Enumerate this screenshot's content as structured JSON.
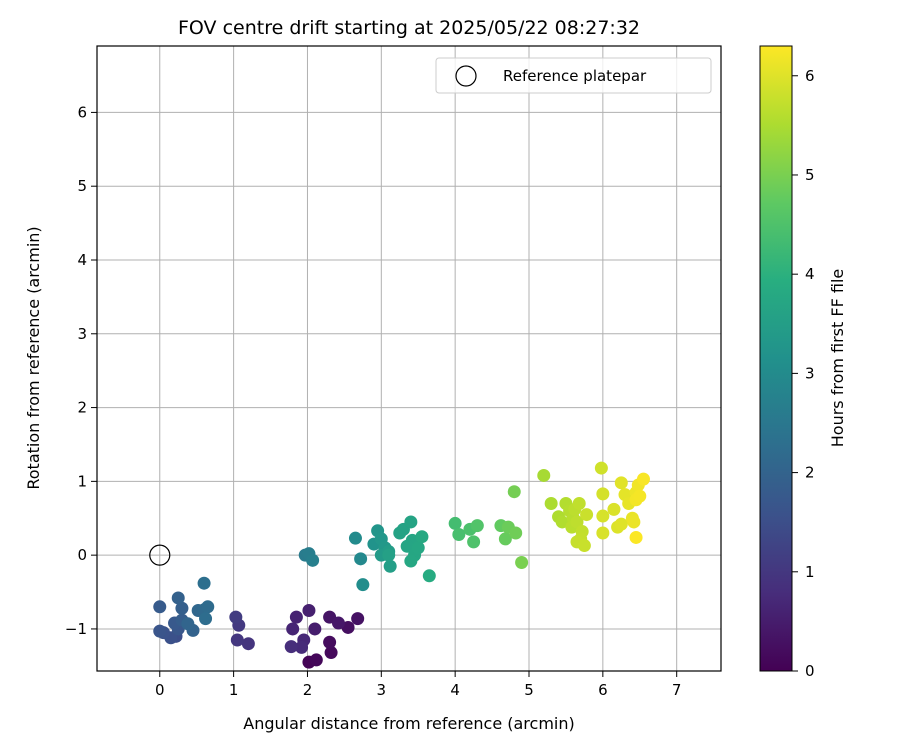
{
  "chart_data": {
    "type": "scatter",
    "title": "FOV centre drift starting at 2025/05/22 08:27:32",
    "xlabel": "Angular distance from reference (arcmin)",
    "ylabel": "Rotation from reference (arcmin)",
    "xlim": [
      -0.85,
      7.6
    ],
    "ylim": [
      -1.57,
      6.9
    ],
    "xticks": [
      0,
      1,
      2,
      3,
      4,
      5,
      6,
      7
    ],
    "yticks": [
      -1,
      0,
      1,
      2,
      3,
      4,
      5,
      6
    ],
    "grid": true,
    "legend": {
      "placement": "upper-right",
      "entries": [
        "Reference platepar"
      ]
    },
    "reference_point": {
      "x": 0,
      "y": 0,
      "marker": "hollow-circle",
      "label": "Reference platepar"
    },
    "colorbar": {
      "label": "Hours from first FF file",
      "colormap": "viridis",
      "range": [
        0,
        6.3
      ],
      "ticks": [
        0,
        1,
        2,
        3,
        4,
        5,
        6
      ]
    },
    "points": [
      {
        "x": 2.02,
        "y": -1.45,
        "h": 0.05
      },
      {
        "x": 2.12,
        "y": -1.42,
        "h": 0.1
      },
      {
        "x": 2.32,
        "y": -1.32,
        "h": 0.15
      },
      {
        "x": 2.3,
        "y": -1.18,
        "h": 0.2
      },
      {
        "x": 2.55,
        "y": -0.98,
        "h": 0.25
      },
      {
        "x": 2.68,
        "y": -0.86,
        "h": 0.3
      },
      {
        "x": 2.3,
        "y": -0.84,
        "h": 0.35
      },
      {
        "x": 2.42,
        "y": -0.92,
        "h": 0.4
      },
      {
        "x": 2.1,
        "y": -1.0,
        "h": 0.5
      },
      {
        "x": 2.02,
        "y": -0.75,
        "h": 0.55
      },
      {
        "x": 1.85,
        "y": -0.84,
        "h": 0.6
      },
      {
        "x": 1.8,
        "y": -1.0,
        "h": 0.65
      },
      {
        "x": 1.95,
        "y": -1.15,
        "h": 0.7
      },
      {
        "x": 1.92,
        "y": -1.25,
        "h": 0.75
      },
      {
        "x": 1.78,
        "y": -1.24,
        "h": 0.8
      },
      {
        "x": 1.2,
        "y": -1.2,
        "h": 0.95
      },
      {
        "x": 1.05,
        "y": -1.15,
        "h": 1.0
      },
      {
        "x": 1.07,
        "y": -0.95,
        "h": 1.05
      },
      {
        "x": 1.03,
        "y": -0.84,
        "h": 1.1
      },
      {
        "x": 0.22,
        "y": -1.1,
        "h": 1.5
      },
      {
        "x": 0.15,
        "y": -1.12,
        "h": 1.55
      },
      {
        "x": 0.05,
        "y": -1.05,
        "h": 1.6
      },
      {
        "x": 0.0,
        "y": -1.03,
        "h": 1.65
      },
      {
        "x": 0.25,
        "y": -1.0,
        "h": 1.7
      },
      {
        "x": 0.2,
        "y": -0.92,
        "h": 1.75
      },
      {
        "x": 0.0,
        "y": -0.7,
        "h": 1.8
      },
      {
        "x": 0.3,
        "y": -0.88,
        "h": 1.85
      },
      {
        "x": 0.3,
        "y": -0.72,
        "h": 1.9
      },
      {
        "x": 0.25,
        "y": -0.58,
        "h": 1.95
      },
      {
        "x": 0.45,
        "y": -1.02,
        "h": 2.0
      },
      {
        "x": 0.38,
        "y": -0.93,
        "h": 2.05
      },
      {
        "x": 0.52,
        "y": -0.75,
        "h": 2.1
      },
      {
        "x": 0.6,
        "y": -0.74,
        "h": 2.15
      },
      {
        "x": 0.65,
        "y": -0.7,
        "h": 2.2
      },
      {
        "x": 0.62,
        "y": -0.86,
        "h": 2.25
      },
      {
        "x": 0.6,
        "y": -0.38,
        "h": 2.3
      },
      {
        "x": 1.97,
        "y": 0.0,
        "h": 2.6
      },
      {
        "x": 2.02,
        "y": 0.02,
        "h": 2.65
      },
      {
        "x": 2.07,
        "y": -0.07,
        "h": 2.7
      },
      {
        "x": 2.72,
        "y": -0.05,
        "h": 2.95
      },
      {
        "x": 2.65,
        "y": 0.23,
        "h": 3.0
      },
      {
        "x": 2.75,
        "y": -0.4,
        "h": 3.05
      },
      {
        "x": 2.9,
        "y": 0.15,
        "h": 3.2
      },
      {
        "x": 2.95,
        "y": 0.33,
        "h": 3.25
      },
      {
        "x": 3.0,
        "y": 0.22,
        "h": 3.3
      },
      {
        "x": 3.05,
        "y": 0.1,
        "h": 3.35
      },
      {
        "x": 3.0,
        "y": 0.0,
        "h": 3.4
      },
      {
        "x": 3.1,
        "y": 0.05,
        "h": 3.45
      },
      {
        "x": 3.12,
        "y": -0.15,
        "h": 3.5
      },
      {
        "x": 3.1,
        "y": 0.0,
        "h": 3.55
      },
      {
        "x": 3.25,
        "y": 0.3,
        "h": 3.6
      },
      {
        "x": 3.3,
        "y": 0.35,
        "h": 3.62
      },
      {
        "x": 3.4,
        "y": 0.45,
        "h": 3.65
      },
      {
        "x": 3.42,
        "y": 0.2,
        "h": 3.68
      },
      {
        "x": 3.35,
        "y": 0.12,
        "h": 3.7
      },
      {
        "x": 3.45,
        "y": 0.0,
        "h": 3.72
      },
      {
        "x": 3.4,
        "y": -0.08,
        "h": 3.74
      },
      {
        "x": 3.5,
        "y": 0.1,
        "h": 3.76
      },
      {
        "x": 3.55,
        "y": 0.25,
        "h": 3.78
      },
      {
        "x": 3.65,
        "y": -0.28,
        "h": 3.85
      },
      {
        "x": 4.0,
        "y": 0.43,
        "h": 4.35
      },
      {
        "x": 4.05,
        "y": 0.28,
        "h": 4.4
      },
      {
        "x": 4.2,
        "y": 0.35,
        "h": 4.45
      },
      {
        "x": 4.25,
        "y": 0.18,
        "h": 4.5
      },
      {
        "x": 4.3,
        "y": 0.4,
        "h": 4.55
      },
      {
        "x": 4.62,
        "y": 0.4,
        "h": 4.75
      },
      {
        "x": 4.68,
        "y": 0.22,
        "h": 4.8
      },
      {
        "x": 4.72,
        "y": 0.38,
        "h": 4.85
      },
      {
        "x": 4.82,
        "y": 0.3,
        "h": 4.9
      },
      {
        "x": 4.8,
        "y": 0.86,
        "h": 4.95
      },
      {
        "x": 4.9,
        "y": -0.1,
        "h": 5.0
      },
      {
        "x": 5.2,
        "y": 1.08,
        "h": 5.45
      },
      {
        "x": 5.3,
        "y": 0.7,
        "h": 5.5
      },
      {
        "x": 5.4,
        "y": 0.52,
        "h": 5.52
      },
      {
        "x": 5.45,
        "y": 0.45,
        "h": 5.55
      },
      {
        "x": 5.5,
        "y": 0.7,
        "h": 5.57
      },
      {
        "x": 5.55,
        "y": 0.6,
        "h": 5.6
      },
      {
        "x": 5.6,
        "y": 0.5,
        "h": 5.62
      },
      {
        "x": 5.58,
        "y": 0.38,
        "h": 5.64
      },
      {
        "x": 5.62,
        "y": 0.62,
        "h": 5.66
      },
      {
        "x": 5.65,
        "y": 0.45,
        "h": 5.68
      },
      {
        "x": 5.68,
        "y": 0.7,
        "h": 5.7
      },
      {
        "x": 5.72,
        "y": 0.32,
        "h": 5.72
      },
      {
        "x": 5.7,
        "y": 0.22,
        "h": 5.74
      },
      {
        "x": 5.65,
        "y": 0.18,
        "h": 5.76
      },
      {
        "x": 5.75,
        "y": 0.13,
        "h": 5.78
      },
      {
        "x": 5.78,
        "y": 0.55,
        "h": 5.8
      },
      {
        "x": 5.98,
        "y": 1.18,
        "h": 5.85
      },
      {
        "x": 6.0,
        "y": 0.83,
        "h": 5.9
      },
      {
        "x": 6.0,
        "y": 0.53,
        "h": 5.92
      },
      {
        "x": 6.0,
        "y": 0.3,
        "h": 5.94
      },
      {
        "x": 6.15,
        "y": 0.62,
        "h": 5.96
      },
      {
        "x": 6.2,
        "y": 0.38,
        "h": 5.98
      },
      {
        "x": 6.25,
        "y": 0.42,
        "h": 6.0
      },
      {
        "x": 6.25,
        "y": 0.98,
        "h": 6.02
      },
      {
        "x": 6.3,
        "y": 0.82,
        "h": 6.05
      },
      {
        "x": 6.35,
        "y": 0.7,
        "h": 6.08
      },
      {
        "x": 6.4,
        "y": 0.5,
        "h": 6.1
      },
      {
        "x": 6.42,
        "y": 0.45,
        "h": 6.12
      },
      {
        "x": 6.45,
        "y": 0.85,
        "h": 6.15
      },
      {
        "x": 6.48,
        "y": 0.95,
        "h": 6.18
      },
      {
        "x": 6.45,
        "y": 0.75,
        "h": 6.2
      },
      {
        "x": 6.5,
        "y": 0.8,
        "h": 6.22
      },
      {
        "x": 6.55,
        "y": 1.03,
        "h": 6.25
      },
      {
        "x": 6.45,
        "y": 0.24,
        "h": 6.28
      }
    ]
  }
}
